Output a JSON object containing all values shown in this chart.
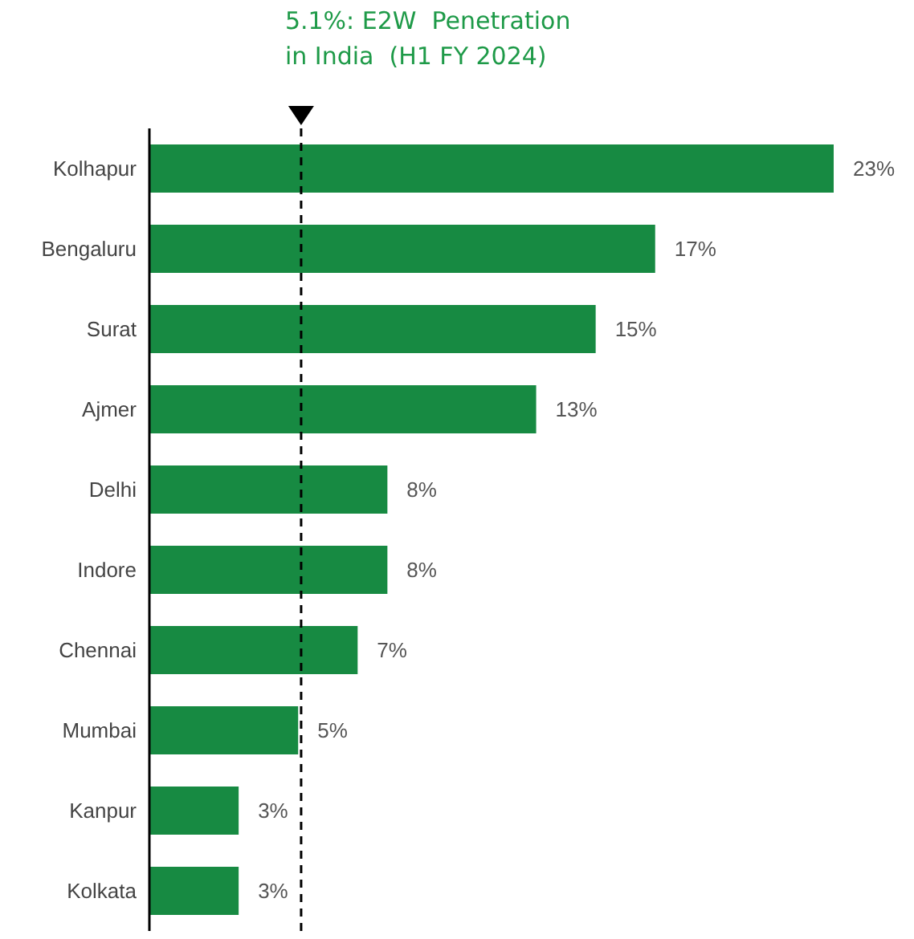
{
  "chart_data": {
    "type": "bar",
    "orientation": "horizontal",
    "categories": [
      "Kolhapur",
      "Bengaluru",
      "Surat",
      "Ajmer",
      "Delhi",
      "Indore",
      "Chennai",
      "Mumbai",
      "Kanpur",
      "Kolkata"
    ],
    "values": [
      23,
      17,
      15,
      13,
      8,
      8,
      7,
      5,
      3,
      3
    ],
    "value_labels": [
      "23%",
      "17%",
      "15%",
      "13%",
      "8%",
      "8%",
      "7%",
      "5%",
      "3%",
      "3%"
    ],
    "color": "#178a42",
    "ref_lines": [
      {
        "axis": "x",
        "value": 5.1,
        "label": "5.1%: E2W  Penetration\nin India  (H1 FY 2024)",
        "color": "#000000",
        "line_style": "dashed"
      }
    ],
    "data_labels": false
  }
}
